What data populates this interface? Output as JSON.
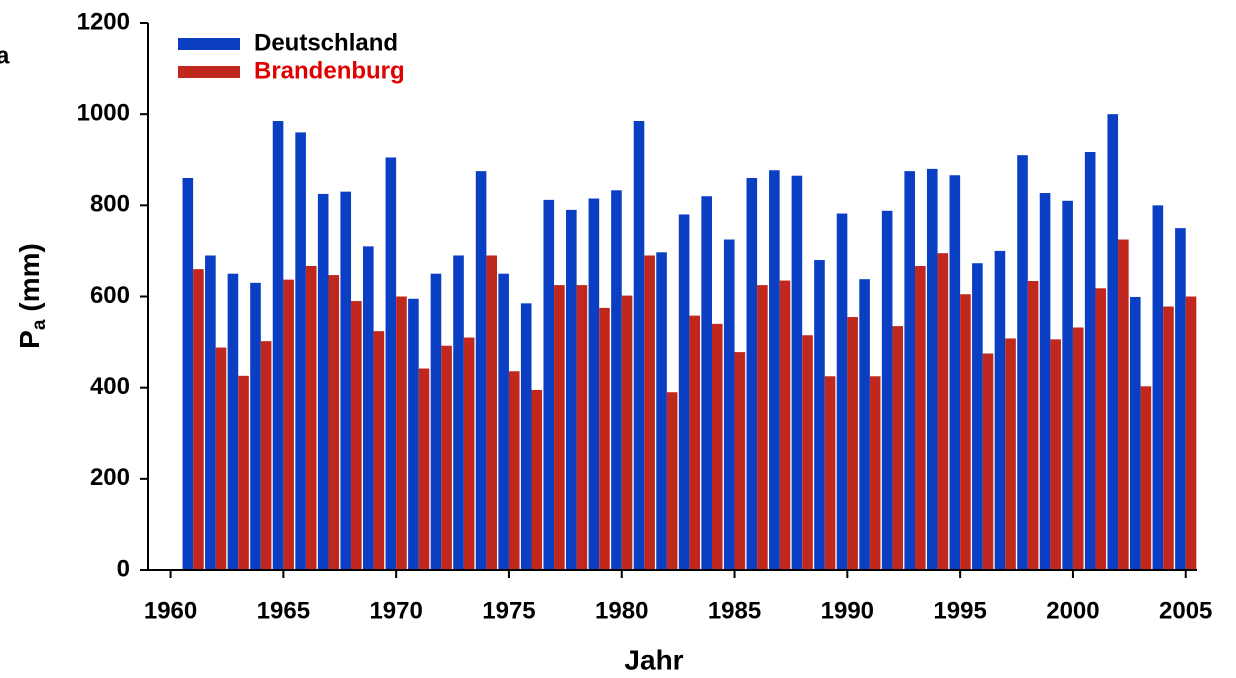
{
  "chart_data": {
    "type": "bar",
    "panel_label": "a",
    "x_label": "Jahr",
    "y_label": "P",
    "y_label_subscript": "a",
    "y_label_unit": "(mm)",
    "x": [
      1961,
      1962,
      1963,
      1964,
      1965,
      1966,
      1967,
      1968,
      1969,
      1970,
      1971,
      1972,
      1973,
      1974,
      1975,
      1976,
      1977,
      1978,
      1979,
      1980,
      1981,
      1982,
      1983,
      1984,
      1985,
      1986,
      1987,
      1988,
      1989,
      1990,
      1991,
      1992,
      1993,
      1994,
      1995,
      1996,
      1997,
      1998,
      1999,
      2000,
      2001,
      2002,
      2003,
      2004,
      2005
    ],
    "series": [
      {
        "name": "Deutschland",
        "color": "#0a3fc4",
        "label_color": "#000000",
        "values": [
          860,
          690,
          650,
          630,
          985,
          960,
          825,
          830,
          710,
          905,
          595,
          650,
          690,
          875,
          650,
          585,
          812,
          790,
          815,
          833,
          985,
          697,
          780,
          820,
          725,
          860,
          877,
          865,
          680,
          782,
          638,
          788,
          875,
          880,
          866,
          673,
          700,
          910,
          827,
          810,
          917,
          1000,
          599,
          800,
          750
        ]
      },
      {
        "name": "Brandenburg",
        "color": "#c0281e",
        "label_color": "#e00000",
        "values": [
          660,
          488,
          426,
          502,
          637,
          667,
          647,
          590,
          524,
          600,
          442,
          492,
          510,
          690,
          436,
          395,
          625,
          625,
          575,
          602,
          690,
          390,
          558,
          540,
          478,
          625,
          635,
          515,
          425,
          555,
          425,
          535,
          667,
          695,
          605,
          475,
          508,
          634,
          506,
          532,
          618,
          725,
          403,
          578,
          600
        ]
      }
    ],
    "xlim": [
      1959,
      2005.5
    ],
    "xticks": [
      1960,
      1965,
      1970,
      1975,
      1980,
      1985,
      1990,
      1995,
      2000,
      2005
    ],
    "ylim": [
      0,
      1200
    ],
    "yticks": [
      0,
      200,
      400,
      600,
      800,
      1000,
      1200
    ],
    "grid": false,
    "legend": "upper left"
  }
}
